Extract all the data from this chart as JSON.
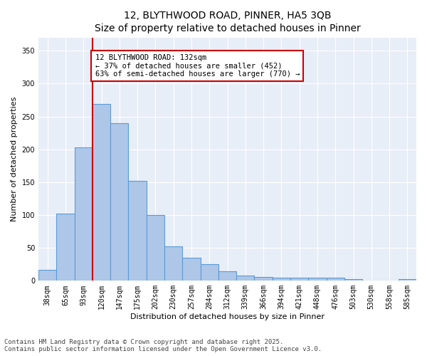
{
  "title": "12, BLYTHWOOD ROAD, PINNER, HA5 3QB",
  "subtitle": "Size of property relative to detached houses in Pinner",
  "xlabel": "Distribution of detached houses by size in Pinner",
  "ylabel": "Number of detached properties",
  "categories": [
    "38sqm",
    "65sqm",
    "93sqm",
    "120sqm",
    "147sqm",
    "175sqm",
    "202sqm",
    "230sqm",
    "257sqm",
    "284sqm",
    "312sqm",
    "339sqm",
    "366sqm",
    "394sqm",
    "421sqm",
    "448sqm",
    "476sqm",
    "503sqm",
    "530sqm",
    "558sqm",
    "585sqm"
  ],
  "values": [
    17,
    102,
    203,
    269,
    240,
    152,
    100,
    52,
    35,
    25,
    14,
    8,
    6,
    5,
    5,
    5,
    5,
    2,
    0,
    0,
    2
  ],
  "bar_color": "#aec6e8",
  "bar_edge_color": "#5b9bd5",
  "bar_edge_width": 0.8,
  "property_line_index": 3,
  "annotation_text": "12 BLYTHWOOD ROAD: 132sqm\n← 37% of detached houses are smaller (452)\n63% of semi-detached houses are larger (770) →",
  "annotation_box_color": "#ffffff",
  "annotation_box_edge_color": "#cc0000",
  "ylim": [
    0,
    370
  ],
  "yticks": [
    0,
    50,
    100,
    150,
    200,
    250,
    300,
    350
  ],
  "background_color": "#e8eef7",
  "grid_color": "#ffffff",
  "fig_background": "#ffffff",
  "footer_line1": "Contains HM Land Registry data © Crown copyright and database right 2025.",
  "footer_line2": "Contains public sector information licensed under the Open Government Licence v3.0.",
  "title_fontsize": 10,
  "xlabel_fontsize": 8,
  "ylabel_fontsize": 8,
  "tick_fontsize": 7,
  "annotation_fontsize": 7.5,
  "footer_fontsize": 6.5
}
